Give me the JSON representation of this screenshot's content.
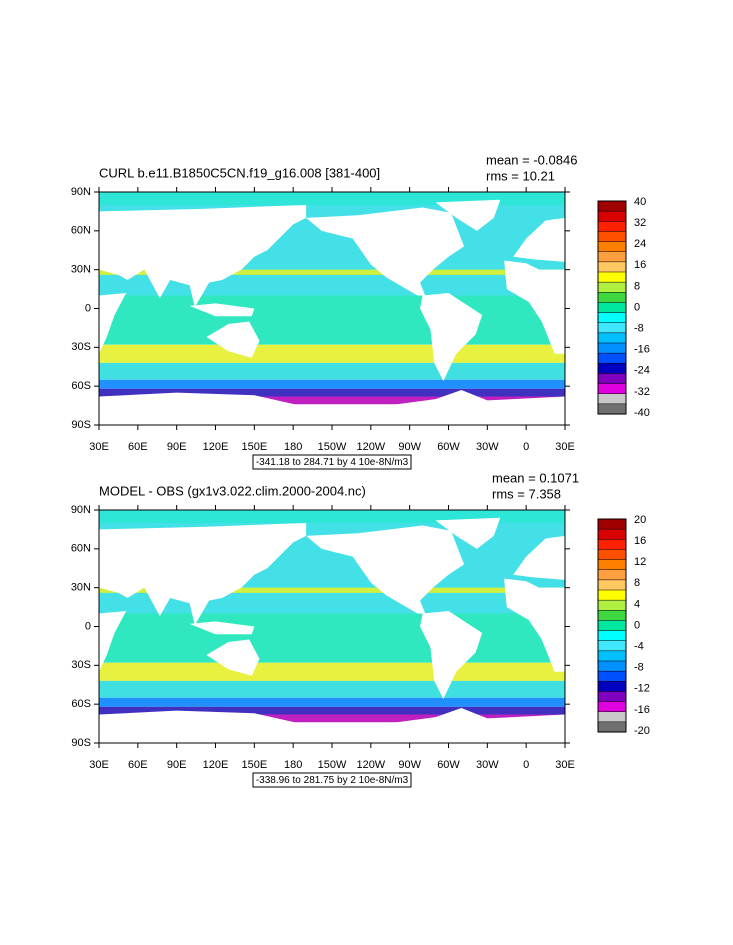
{
  "panels": [
    {
      "title": "CURL b.e11.B1850C5CN.f19_g16.008 [381-400]",
      "mean": "mean = -0.0846",
      "rms": "rms = 10.21",
      "info": "-341.18 to 284.71 by 4 10e-8N/m3",
      "colorbar_labels": [
        "40",
        "32",
        "24",
        "16",
        "8",
        "0",
        "-8",
        "-16",
        "-24",
        "-32",
        "-40"
      ]
    },
    {
      "title": "MODEL - OBS (gx1v3.022.clim.2000-2004.nc)",
      "mean": "mean = 0.1071",
      "rms": "rms = 7.358",
      "info": "-338.96 to 281.75 by 2 10e-8N/m3",
      "colorbar_labels": [
        "20",
        "16",
        "12",
        "8",
        "4",
        "0",
        "-4",
        "-8",
        "-12",
        "-16",
        "-20"
      ]
    }
  ],
  "lat_labels": [
    "90N",
    "60N",
    "30N",
    "0",
    "30S",
    "60S",
    "90S"
  ],
  "lon_labels": [
    "30E",
    "60E",
    "90E",
    "120E",
    "150E",
    "180",
    "150W",
    "120W",
    "90W",
    "60W",
    "30W",
    "0",
    "30E"
  ]
}
